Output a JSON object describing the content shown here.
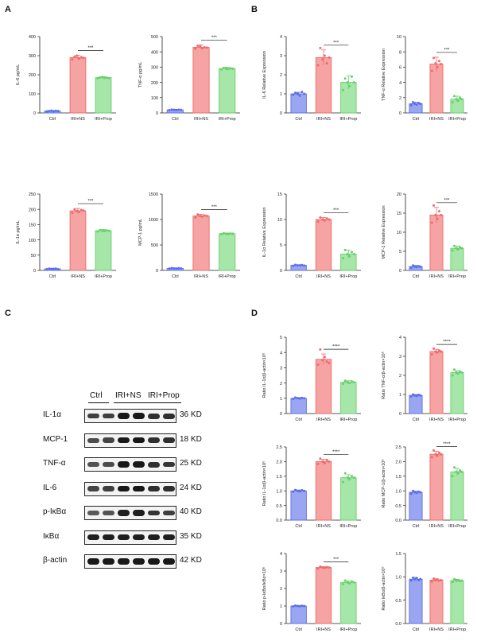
{
  "panels": {
    "a": "A",
    "b": "B",
    "c": "C",
    "d": "D"
  },
  "colors": {
    "ctrl": "#5b6ee8",
    "ns": "#f06a6a",
    "prop": "#66d06a",
    "ctrl_fill": "#9aa6f2",
    "ns_fill": "#f6a3a3",
    "prop_fill": "#a6e6a8"
  },
  "chart_data": [
    {
      "panel": "A",
      "type": "bar",
      "categories": [
        "Ctrl",
        "IRI+NS",
        "IRI+Prop"
      ],
      "values": [
        10,
        290,
        185
      ],
      "errors": [
        3,
        12,
        5
      ],
      "ylabel": "IL-6 pg/mL",
      "ylim": [
        0,
        400
      ],
      "yticks": [
        "0",
        "100",
        "200",
        "300",
        "400"
      ],
      "sig": "***",
      "points": [
        [
          8,
          10,
          12,
          9,
          11,
          10
        ],
        [
          280,
          295,
          300,
          285,
          292,
          288
        ],
        [
          182,
          186,
          188,
          184,
          185,
          183
        ]
      ]
    },
    {
      "panel": "A",
      "type": "bar",
      "categories": [
        "Ctrl",
        "IRI+NS",
        "IRI+Prop"
      ],
      "values": [
        20,
        430,
        290
      ],
      "errors": [
        4,
        15,
        10
      ],
      "ylabel": "TNF-α pg/mL",
      "ylim": [
        0,
        500
      ],
      "yticks": [
        "0",
        "100",
        "200",
        "300",
        "400",
        "500"
      ],
      "sig": "***",
      "points": [
        [
          18,
          22,
          20,
          19,
          21,
          20
        ],
        [
          420,
          440,
          435,
          425,
          430,
          428
        ],
        [
          285,
          295,
          290,
          288,
          292,
          290
        ]
      ]
    },
    {
      "panel": "B",
      "type": "bar",
      "categories": [
        "Ctrl",
        "IRI+NS",
        "IRI+Prop"
      ],
      "values": [
        1.0,
        2.9,
        1.6
      ],
      "errors": [
        0.08,
        0.4,
        0.35
      ],
      "ylabel": "IL-6 Relative Expression",
      "ylim": [
        0,
        4
      ],
      "yticks": [
        "0",
        "1",
        "2",
        "3",
        "4"
      ],
      "sig": "***",
      "points": [
        [
          0.95,
          1.05,
          1.0,
          0.9,
          1.1,
          1.0
        ],
        [
          2.5,
          3.4,
          2.8,
          3.0,
          2.6,
          2.9
        ],
        [
          1.2,
          1.8,
          1.6,
          1.4,
          1.9,
          1.6
        ]
      ]
    },
    {
      "panel": "B",
      "type": "bar",
      "categories": [
        "Ctrl",
        "IRI+NS",
        "IRI+Prop"
      ],
      "values": [
        1.2,
        6.4,
        1.8
      ],
      "errors": [
        0.2,
        0.9,
        0.4
      ],
      "ylabel": "TNF-α Relative Expression",
      "ylim": [
        0,
        10
      ],
      "yticks": [
        "0",
        "2",
        "4",
        "6",
        "8",
        "10"
      ],
      "sig": "***",
      "points": [
        [
          1.0,
          1.4,
          1.2,
          1.1,
          1.3,
          1.2
        ],
        [
          5.5,
          7.2,
          6.5,
          6.0,
          6.8,
          6.4
        ],
        [
          1.4,
          2.2,
          1.8,
          1.6,
          2.0,
          1.8
        ]
      ]
    },
    {
      "panel": "A",
      "type": "bar",
      "categories": [
        "Ctrl",
        "IRI+NS",
        "IRI+Prop"
      ],
      "values": [
        5,
        195,
        130
      ],
      "errors": [
        2,
        8,
        4
      ],
      "ylabel": "IL-1α pg/mL",
      "ylim": [
        0,
        250
      ],
      "yticks": [
        "0",
        "50",
        "100",
        "150",
        "200",
        "250"
      ],
      "sig": "***",
      "points": [
        [
          4,
          6,
          5,
          5,
          6,
          4
        ],
        [
          188,
          200,
          195,
          192,
          198,
          196
        ],
        [
          128,
          132,
          130,
          129,
          131,
          130
        ]
      ]
    },
    {
      "panel": "A",
      "type": "bar",
      "categories": [
        "Ctrl",
        "IRI+NS",
        "IRI+Prop"
      ],
      "values": [
        40,
        1070,
        720
      ],
      "errors": [
        8,
        30,
        15
      ],
      "ylabel": "MCP-1 pg/mL",
      "ylim": [
        0,
        1500
      ],
      "yticks": [
        "0",
        "500",
        "1000",
        "1500"
      ],
      "sig": "***",
      "points": [
        [
          35,
          45,
          40,
          38,
          42,
          40
        ],
        [
          1040,
          1100,
          1070,
          1060,
          1080,
          1070
        ],
        [
          710,
          730,
          720,
          715,
          725,
          720
        ]
      ]
    },
    {
      "panel": "B",
      "type": "bar",
      "categories": [
        "Ctrl",
        "IRI+NS",
        "IRI+Prop"
      ],
      "values": [
        1.0,
        10.0,
        3.2
      ],
      "errors": [
        0.1,
        0.4,
        0.8
      ],
      "ylabel": "IL-1α Relative Expression",
      "ylim": [
        0,
        15
      ],
      "yticks": [
        "0",
        "5",
        "10",
        "15"
      ],
      "sig": "***",
      "points": [
        [
          0.9,
          1.1,
          1.0,
          1.0,
          1.05,
          0.95
        ],
        [
          9.6,
          10.4,
          10.0,
          9.8,
          10.2,
          10.0
        ],
        [
          2.4,
          4.0,
          3.2,
          2.8,
          3.6,
          3.2
        ]
      ]
    },
    {
      "panel": "B",
      "type": "bar",
      "categories": [
        "Ctrl",
        "IRI+NS",
        "IRI+Prop"
      ],
      "values": [
        1.0,
        14.5,
        5.8
      ],
      "errors": [
        0.3,
        2.0,
        0.6
      ],
      "ylabel": "MCP-1 Relative Expression",
      "ylim": [
        0,
        20
      ],
      "yticks": [
        "0",
        "5",
        "10",
        "15",
        "20"
      ],
      "sig": "***",
      "points": [
        [
          0.7,
          1.3,
          1.0,
          0.9,
          1.1,
          1.0
        ],
        [
          12.5,
          17.0,
          14.5,
          13.5,
          15.5,
          14.5
        ],
        [
          5.2,
          6.4,
          5.8,
          5.5,
          6.1,
          5.8
        ]
      ]
    },
    {
      "panel": "D",
      "type": "bar",
      "categories": [
        "Ctrl",
        "IRI+NS",
        "IRI+Prop"
      ],
      "values": [
        1.0,
        3.55,
        2.05
      ],
      "errors": [
        0.05,
        0.35,
        0.1
      ],
      "ylabel": "Ratio IL-1α/β-actin×10⁶",
      "ylim": [
        0,
        5
      ],
      "yticks": [
        "0",
        "1",
        "2",
        "3",
        "4",
        "5"
      ],
      "sig": "****",
      "points": [
        [
          0.95,
          1.05,
          1.0,
          0.98,
          1.02,
          1.0
        ],
        [
          3.2,
          4.2,
          3.5,
          3.7,
          3.4,
          3.3
        ],
        [
          1.95,
          2.15,
          2.05,
          2.0,
          2.1,
          2.05
        ]
      ]
    },
    {
      "panel": "D",
      "type": "bar",
      "categories": [
        "Ctrl",
        "IRI+NS",
        "IRI+Prop"
      ],
      "values": [
        0.95,
        3.25,
        2.15
      ],
      "errors": [
        0.05,
        0.12,
        0.1
      ],
      "ylabel": "Ratio TNF-α/β-actin×10⁶",
      "ylim": [
        0,
        4
      ],
      "yticks": [
        "0",
        "1",
        "2",
        "3",
        "4"
      ],
      "sig": "****",
      "points": [
        [
          0.9,
          1.0,
          0.95,
          0.92,
          0.98,
          0.95
        ],
        [
          3.1,
          3.4,
          3.25,
          3.2,
          3.3,
          3.25
        ],
        [
          2.0,
          2.3,
          2.15,
          2.1,
          2.2,
          2.15
        ]
      ]
    },
    {
      "panel": "D",
      "type": "bar",
      "categories": [
        "Ctrl",
        "IRI+NS",
        "IRI+Prop"
      ],
      "values": [
        1.0,
        2.0,
        1.45
      ],
      "errors": [
        0.03,
        0.08,
        0.1
      ],
      "ylabel": "Ratio IL-1α/β-actin×10⁶",
      "ylim": [
        0,
        2.5
      ],
      "yticks": [
        "0.0",
        "0.5",
        "1.0",
        "1.5",
        "2.0",
        "2.5"
      ],
      "sig": "****",
      "points": [
        [
          0.97,
          1.03,
          1.0,
          0.98,
          1.02,
          1.0
        ],
        [
          1.92,
          2.1,
          2.0,
          1.95,
          2.05,
          2.0
        ],
        [
          1.3,
          1.6,
          1.45,
          1.4,
          1.5,
          1.45
        ]
      ]
    },
    {
      "panel": "D",
      "type": "bar",
      "categories": [
        "Ctrl",
        "IRI+NS",
        "IRI+Prop"
      ],
      "values": [
        0.95,
        2.25,
        1.65
      ],
      "errors": [
        0.04,
        0.1,
        0.12
      ],
      "ylabel": "Ratio MCP-1/β-actin×10⁶",
      "ylim": [
        0,
        2.5
      ],
      "yticks": [
        "0.0",
        "0.5",
        "1.0",
        "1.5",
        "2.0",
        "2.5"
      ],
      "sig": "****",
      "points": [
        [
          0.9,
          1.0,
          0.95,
          0.93,
          0.97,
          0.95
        ],
        [
          2.15,
          2.38,
          2.25,
          2.2,
          2.3,
          2.25
        ],
        [
          1.5,
          1.8,
          1.65,
          1.6,
          1.7,
          1.65
        ]
      ]
    },
    {
      "panel": "D",
      "type": "bar",
      "categories": [
        "Ctrl",
        "IRI+NS",
        "IRI+Prop"
      ],
      "values": [
        1.0,
        3.2,
        2.35
      ],
      "errors": [
        0.03,
        0.05,
        0.08
      ],
      "ylabel": "Ratio p-IκBα/IκBα×10⁶",
      "ylim": [
        0,
        4
      ],
      "yticks": [
        "0",
        "1",
        "2",
        "3",
        "4"
      ],
      "sig": "***",
      "points": [
        [
          0.98,
          1.02,
          1.0,
          0.99,
          1.01,
          1.0
        ],
        [
          3.15,
          3.25,
          3.2,
          3.18,
          3.22,
          3.2
        ],
        [
          2.25,
          2.45,
          2.35,
          2.3,
          2.4,
          2.35
        ]
      ]
    },
    {
      "panel": "D",
      "type": "bar",
      "categories": [
        "Ctrl",
        "IRI+NS",
        "IRI+Prop"
      ],
      "values": [
        0.95,
        0.93,
        0.92
      ],
      "errors": [
        0.04,
        0.03,
        0.03
      ],
      "ylabel": "Ratio IκBα/β-actin×10⁶",
      "ylim": [
        0,
        1.5
      ],
      "yticks": [
        "0.0",
        "0.5",
        "1.0",
        "1.5"
      ],
      "sig": "",
      "points": [
        [
          0.92,
          0.98,
          0.95,
          0.97,
          0.93,
          0.95
        ],
        [
          0.9,
          0.96,
          0.93,
          0.94,
          0.92,
          0.93
        ],
        [
          0.89,
          0.95,
          0.92,
          0.93,
          0.91,
          0.92
        ]
      ]
    }
  ],
  "blot": {
    "groups": [
      "Ctrl",
      "IRI+NS",
      "IRI+Prop"
    ],
    "rows": [
      {
        "label": "IL-1α",
        "kd": "36 KD",
        "intensity": [
          0.7,
          0.7,
          0.95,
          0.95,
          0.8,
          0.8
        ]
      },
      {
        "label": "MCP-1",
        "kd": "18 KD",
        "intensity": [
          0.6,
          0.65,
          0.95,
          0.95,
          0.8,
          0.8
        ]
      },
      {
        "label": "TNF-α",
        "kd": "25 KD",
        "intensity": [
          0.55,
          0.6,
          0.95,
          0.95,
          0.8,
          0.75
        ]
      },
      {
        "label": "IL-6",
        "kd": "24 KD",
        "intensity": [
          0.65,
          0.7,
          0.95,
          0.95,
          0.8,
          0.8
        ]
      },
      {
        "label": "p-IκBα",
        "kd": "40 KD",
        "intensity": [
          0.5,
          0.55,
          0.9,
          0.9,
          0.75,
          0.7
        ]
      },
      {
        "label": "IκBα",
        "kd": "35 KD",
        "intensity": [
          0.9,
          0.9,
          0.9,
          0.9,
          0.9,
          0.9
        ]
      },
      {
        "label": "β-actin",
        "kd": "42 KD",
        "intensity": [
          0.95,
          0.95,
          0.95,
          0.95,
          0.95,
          0.95
        ]
      }
    ]
  }
}
